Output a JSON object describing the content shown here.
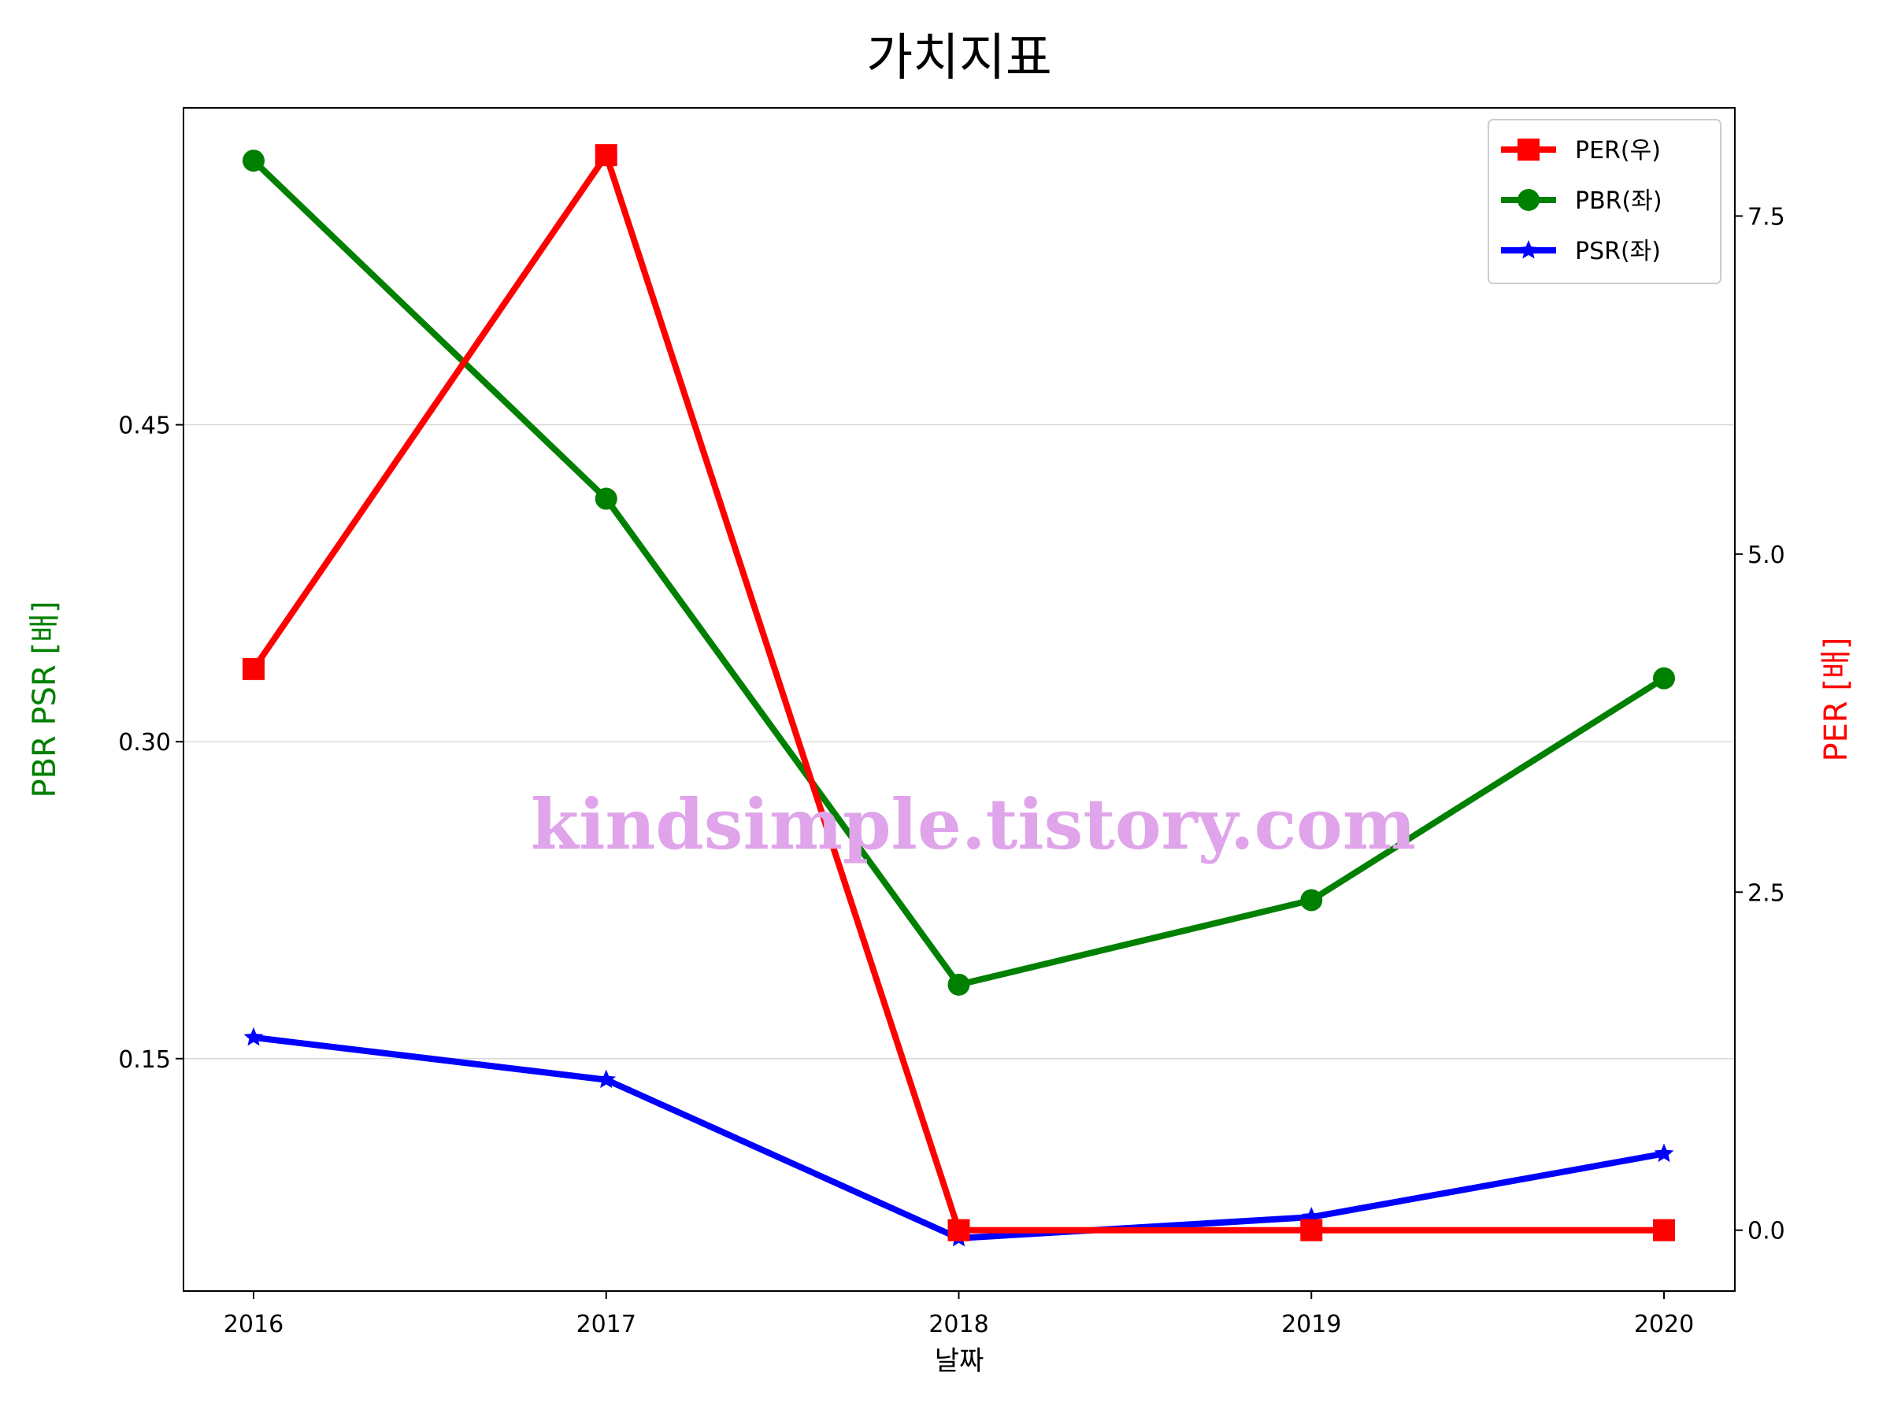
{
  "chart_data": {
    "type": "line",
    "title": "가치지표",
    "xlabel": "날짜",
    "ylabel_left": "PBR PSR [배]",
    "ylabel_right": "PER [배]",
    "categories": [
      "2016",
      "2017",
      "2018",
      "2019",
      "2020"
    ],
    "left_axis": {
      "ylim": [
        0.04,
        0.6
      ],
      "ticks": [
        0.15,
        0.3,
        0.45
      ],
      "tick_labels": [
        "0.15",
        "0.30",
        "0.45"
      ],
      "grid": true
    },
    "right_axis": {
      "ylim": [
        -0.45,
        8.3
      ],
      "ticks": [
        0.0,
        2.5,
        5.0,
        7.5
      ],
      "tick_labels": [
        "0.0",
        "2.5",
        "5.0",
        "7.5"
      ]
    },
    "series": [
      {
        "name": "PER(우)",
        "axis": "right",
        "color": "#ff0000",
        "marker": "square",
        "values": [
          4.15,
          7.95,
          0.0,
          0.0,
          0.0
        ]
      },
      {
        "name": "PBR(좌)",
        "axis": "left",
        "color": "#008000",
        "marker": "circle",
        "values": [
          0.575,
          0.415,
          0.185,
          0.225,
          0.33
        ]
      },
      {
        "name": "PSR(좌)",
        "axis": "left",
        "color": "#0000ff",
        "marker": "star",
        "values": [
          0.16,
          0.14,
          0.065,
          0.075,
          0.105
        ]
      }
    ],
    "legend_position": "top-right",
    "watermark": "kindsimple.tistory.com"
  }
}
